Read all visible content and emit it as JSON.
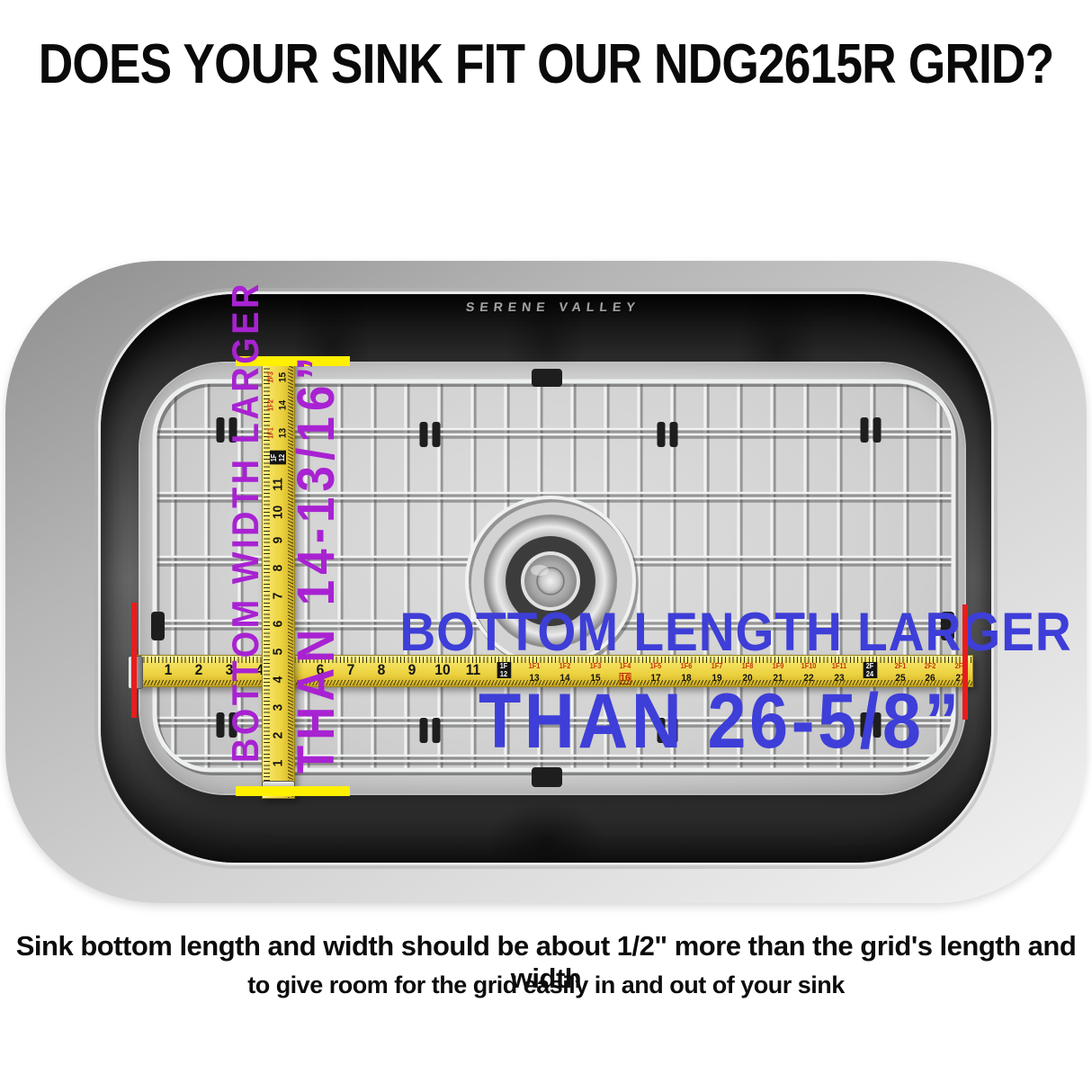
{
  "title": "DOES YOUR SINK FIT OUR NDG2615R GRID?",
  "brand": "SERENE VALLEY",
  "labels": {
    "width1": "BOTTOM WIDTH LARGER",
    "width2": "THAN 14-13/16”",
    "length1": "BOTTOM LENGTH LARGER",
    "length2": "THAN 26-5/8”"
  },
  "caption": {
    "line1": "Sink bottom length and width should be about 1/2\" more than the grid's length and width",
    "line2": "to give room for the grid easily in and out of your sink"
  },
  "colors": {
    "purple": "#a822d2",
    "blue": "#3e3ed8",
    "tape_red": "#c63511",
    "marker_yellow": "#ffef00",
    "marker_red": "#ea1c1c"
  },
  "tapes": {
    "horizontal": {
      "items": [
        {
          "t": "big",
          "v": "1"
        },
        {
          "t": "big",
          "v": "2"
        },
        {
          "t": "big",
          "v": "3"
        },
        {
          "t": "big",
          "v": "4"
        },
        {
          "t": "big",
          "v": "5"
        },
        {
          "t": "big",
          "v": "6"
        },
        {
          "t": "big",
          "v": "7"
        },
        {
          "t": "big",
          "v": "8"
        },
        {
          "t": "big",
          "v": "9"
        },
        {
          "t": "big",
          "v": "10"
        },
        {
          "t": "big",
          "v": "11"
        },
        {
          "t": "box",
          "top": "1F",
          "bot": "12"
        },
        {
          "t": "frac",
          "red": "1F1",
          "v": "13"
        },
        {
          "t": "frac",
          "red": "1F2",
          "v": "14"
        },
        {
          "t": "frac",
          "red": "1F3",
          "v": "15"
        },
        {
          "t": "frac",
          "red": "1F4",
          "v": "16",
          "hl": true
        },
        {
          "t": "frac",
          "red": "1F5",
          "v": "17"
        },
        {
          "t": "frac",
          "red": "1F6",
          "v": "18"
        },
        {
          "t": "frac",
          "red": "1F7",
          "v": "19"
        },
        {
          "t": "frac",
          "red": "1F8",
          "v": "20"
        },
        {
          "t": "frac",
          "red": "1F9",
          "v": "21"
        },
        {
          "t": "frac",
          "red": "1F10",
          "v": "22"
        },
        {
          "t": "frac",
          "red": "1F11",
          "v": "23"
        },
        {
          "t": "box",
          "top": "2F",
          "bot": "24"
        },
        {
          "t": "frac",
          "red": "2F1",
          "v": "25"
        },
        {
          "t": "frac",
          "red": "2F2",
          "v": "26"
        },
        {
          "t": "frac",
          "red": "2F3",
          "v": "27"
        }
      ]
    },
    "vertical": {
      "items": [
        {
          "t": "big",
          "v": "1"
        },
        {
          "t": "big",
          "v": "2"
        },
        {
          "t": "big",
          "v": "3"
        },
        {
          "t": "big",
          "v": "4"
        },
        {
          "t": "big",
          "v": "5"
        },
        {
          "t": "big",
          "v": "6"
        },
        {
          "t": "big",
          "v": "7"
        },
        {
          "t": "big",
          "v": "8"
        },
        {
          "t": "big",
          "v": "9"
        },
        {
          "t": "big",
          "v": "10"
        },
        {
          "t": "big",
          "v": "11"
        },
        {
          "t": "box",
          "top": "1F",
          "bot": "12"
        },
        {
          "t": "frac",
          "red": "1F1",
          "v": "13"
        },
        {
          "t": "frac",
          "red": "1F2",
          "v": "14"
        },
        {
          "t": "frac",
          "red": "1F3",
          "v": "15"
        }
      ]
    }
  }
}
